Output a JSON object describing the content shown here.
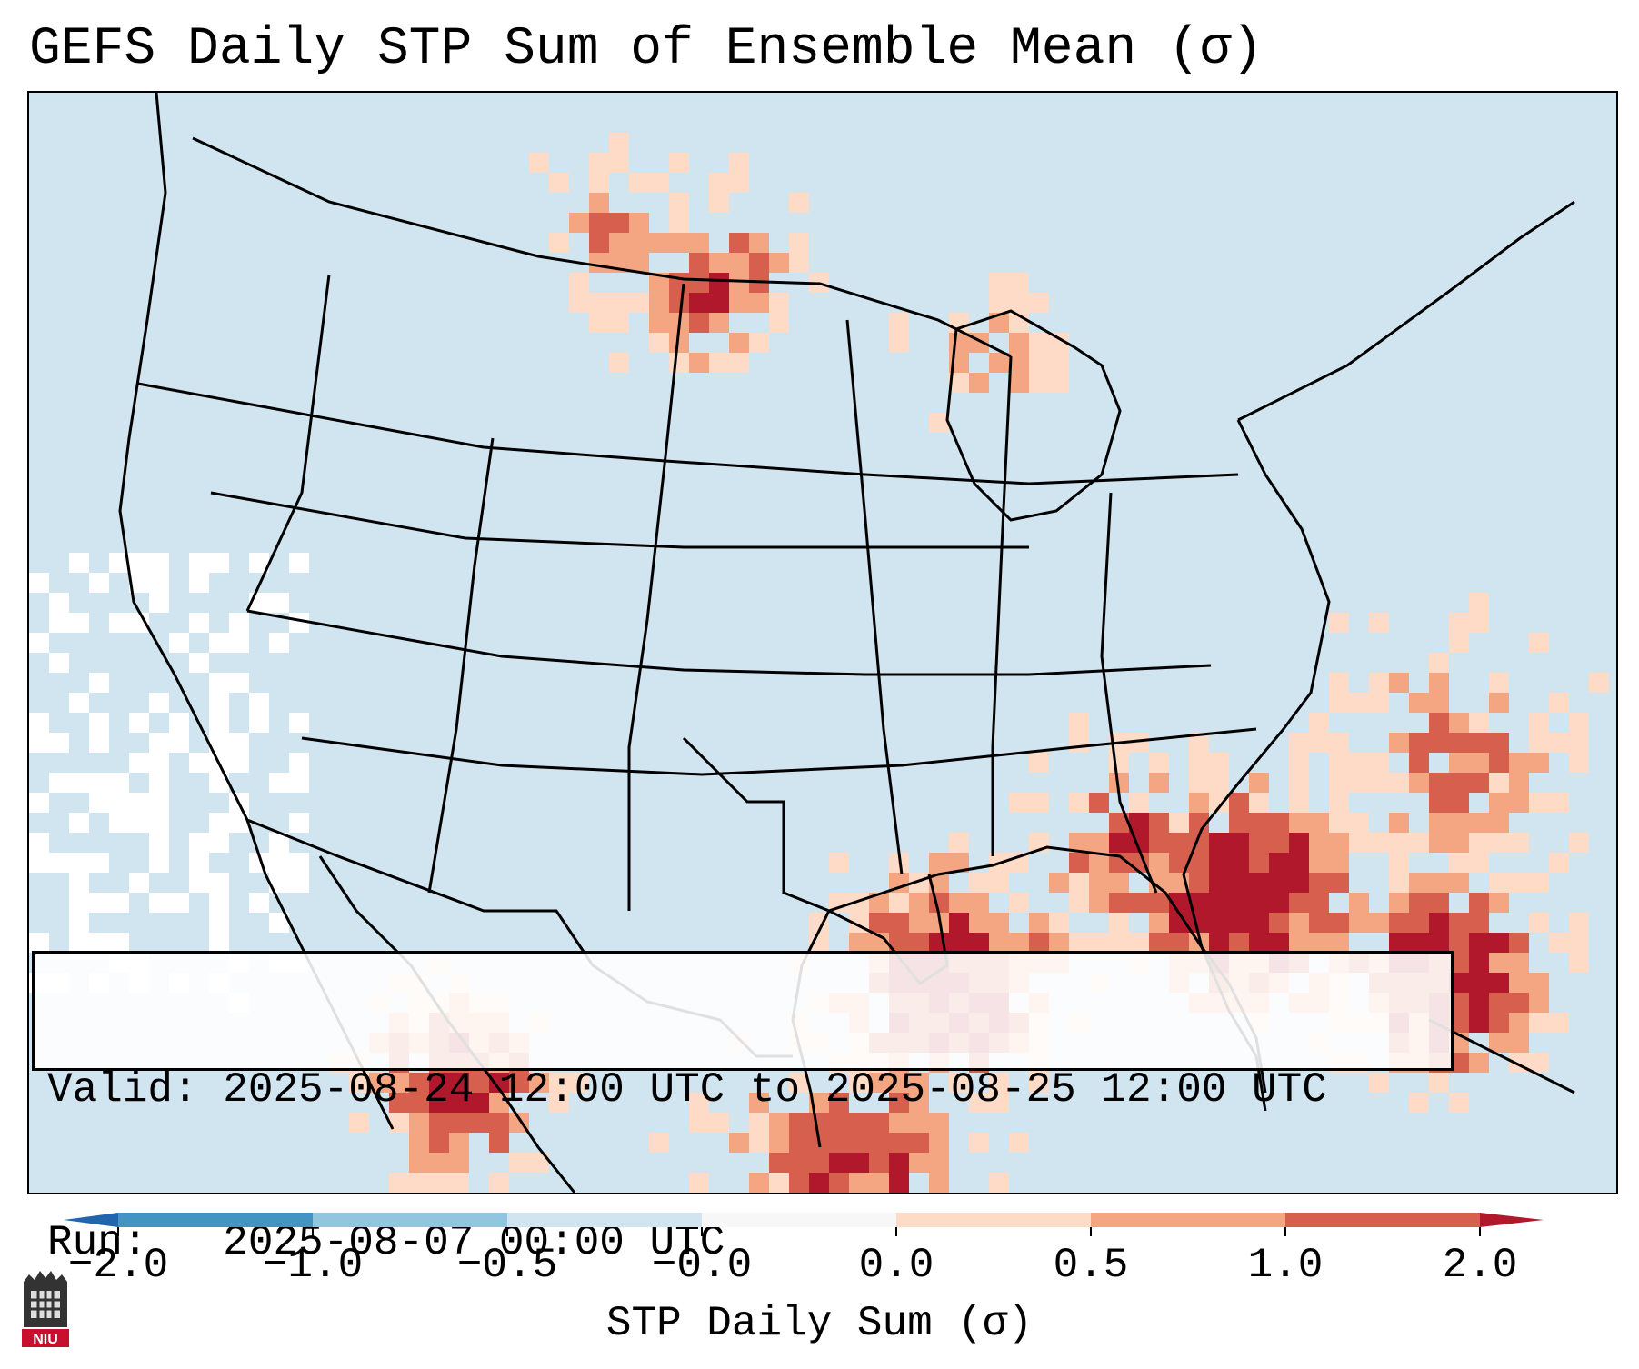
{
  "title": "GEFS Daily STP Sum of Ensemble Mean (σ)",
  "valid_line": "Valid: 2025-08-24 12:00 UTC to 2025-08-25 12:00 UTC",
  "run_line": "Run:   2025-08-07 00:00 UTC",
  "colorbar": {
    "label": "STP Daily Sum (σ)",
    "ticks": [
      "−2.0",
      "−1.0",
      "−0.5",
      "−0.0",
      "0.0",
      "0.5",
      "1.0",
      "2.0"
    ],
    "colors": [
      "#2166ac",
      "#4393c3",
      "#92c5de",
      "#d1e5f0",
      "#f7f7f7",
      "#fddbc7",
      "#f4a582",
      "#d6604d",
      "#b2182b"
    ]
  },
  "logo": {
    "text": "NIU"
  },
  "map": {
    "region": "Contiguous United States, Mexico and Gulf of Mexico",
    "background_color": "#d1e5f0",
    "highlight_areas": [
      "Gulf Coast",
      "Southeast",
      "Florida",
      "Northern Plains",
      "Mexico"
    ]
  }
}
